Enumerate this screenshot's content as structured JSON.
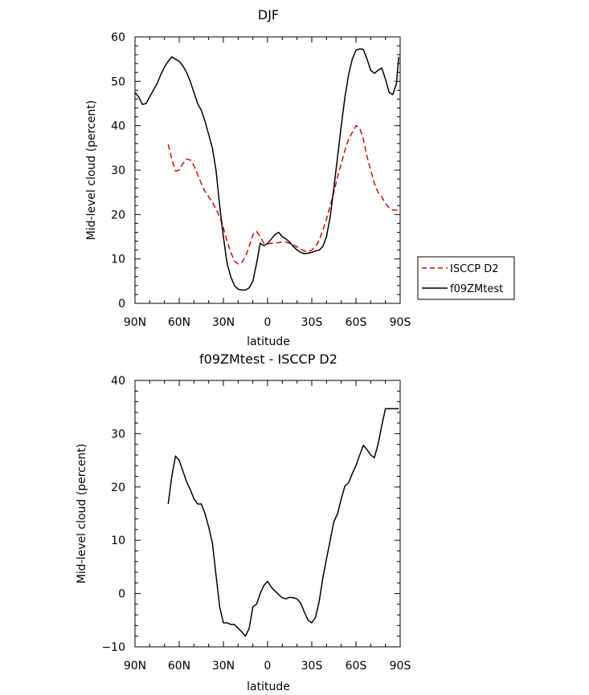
{
  "chart_data": [
    {
      "type": "line",
      "title": "DJF",
      "xlabel": "latitude",
      "ylabel": "Mid-level cloud (percent)",
      "xlim": [
        -90,
        90
      ],
      "ylim": [
        0,
        60
      ],
      "x_ticks": [
        {
          "value": -90,
          "label": "90N"
        },
        {
          "value": -60,
          "label": "60N"
        },
        {
          "value": -30,
          "label": "30N"
        },
        {
          "value": 0,
          "label": "0"
        },
        {
          "value": 30,
          "label": "30S"
        },
        {
          "value": 60,
          "label": "60S"
        },
        {
          "value": 90,
          "label": "90S"
        }
      ],
      "y_ticks": [
        0,
        10,
        20,
        30,
        40,
        50,
        60
      ],
      "legend_position": "right",
      "series": [
        {
          "name": "ISCCP D2",
          "color": "#dd0000",
          "dash": "dashed",
          "x": [
            -67.5,
            -65,
            -62.5,
            -60,
            -57.5,
            -55,
            -52.5,
            -50,
            -47.5,
            -45,
            -42.5,
            -40,
            -37.5,
            -35,
            -32.5,
            -30,
            -27.5,
            -25,
            -22.5,
            -20,
            -17.5,
            -15,
            -12.5,
            -10,
            -7.5,
            -5,
            -2.5,
            0,
            2.5,
            5,
            7.5,
            10,
            12.5,
            15,
            17.5,
            20,
            22.5,
            25,
            27.5,
            30,
            32.5,
            35,
            37.5,
            40,
            42.5,
            45,
            47.5,
            50,
            52.5,
            55,
            57.5,
            60,
            62.5,
            65,
            67.5,
            70,
            72.5,
            75,
            77.5,
            80,
            82.5,
            85,
            87.5,
            89
          ],
          "y": [
            35.8,
            32.5,
            29.8,
            30.0,
            31.5,
            32.5,
            32.3,
            31.0,
            29.0,
            27.0,
            25.2,
            24.0,
            22.8,
            21.2,
            19.5,
            17.0,
            14.0,
            11.5,
            9.5,
            8.9,
            9.2,
            10.5,
            12.8,
            15.5,
            16.2,
            15.0,
            13.5,
            13.4,
            13.5,
            13.6,
            13.7,
            13.8,
            13.8,
            13.5,
            13.2,
            12.7,
            12.2,
            11.8,
            11.7,
            12.0,
            12.8,
            14.2,
            16.5,
            19.0,
            22.0,
            25.0,
            28.5,
            31.5,
            34.5,
            37.0,
            38.5,
            40.0,
            39.5,
            37.0,
            33.0,
            30.0,
            27.0,
            25.0,
            24.0,
            22.5,
            21.5,
            21.0,
            21.0,
            21.0
          ]
        },
        {
          "name": "f09ZMtest",
          "color": "#000000",
          "dash": "solid",
          "x": [
            -90,
            -87.5,
            -85,
            -82.5,
            -80,
            -77.5,
            -75,
            -72.5,
            -70,
            -67.5,
            -65,
            -62.5,
            -60,
            -57.5,
            -55,
            -52.5,
            -50,
            -47.5,
            -45,
            -42.5,
            -40,
            -37.5,
            -35,
            -32.5,
            -30,
            -27.5,
            -25,
            -22.5,
            -20,
            -17.5,
            -15,
            -12.5,
            -10,
            -7.5,
            -5,
            -2.5,
            0,
            2.5,
            5,
            7.5,
            10,
            12.5,
            15,
            17.5,
            20,
            22.5,
            25,
            27.5,
            30,
            32.5,
            35,
            37.5,
            40,
            42.5,
            45,
            47.5,
            50,
            52.5,
            55,
            57.5,
            60,
            62.5,
            65,
            67.5,
            70,
            72.5,
            75,
            77.5,
            80,
            82.5,
            85,
            87.5,
            89
          ],
          "y": [
            47.5,
            46.5,
            44.8,
            45.0,
            46.5,
            48.0,
            49.5,
            51.5,
            53.2,
            54.5,
            55.5,
            55.0,
            54.5,
            53.5,
            52.0,
            50.0,
            47.5,
            45.0,
            43.5,
            41.0,
            38.0,
            35.0,
            30.0,
            22.0,
            15.0,
            9.0,
            6.0,
            4.0,
            3.2,
            3.0,
            3.0,
            3.5,
            5.0,
            9.0,
            13.5,
            13.0,
            13.5,
            14.5,
            15.5,
            16.0,
            15.0,
            14.5,
            13.8,
            12.8,
            12.0,
            11.5,
            11.2,
            11.3,
            11.5,
            11.8,
            12.0,
            12.8,
            15.0,
            19.5,
            26.0,
            33.0,
            40.0,
            46.5,
            51.5,
            55.0,
            57.0,
            57.3,
            57.2,
            55.0,
            52.5,
            51.8,
            52.5,
            53.0,
            50.5,
            47.5,
            47.0,
            49.5,
            55.5
          ]
        }
      ]
    },
    {
      "type": "line",
      "title": "f09ZMtest - ISCCP D2",
      "xlabel": "latitude",
      "ylabel": "Mid-level cloud (percent)",
      "xlim": [
        -90,
        90
      ],
      "ylim": [
        -10,
        40
      ],
      "x_ticks": [
        {
          "value": -90,
          "label": "90N"
        },
        {
          "value": -60,
          "label": "60N"
        },
        {
          "value": -30,
          "label": "30N"
        },
        {
          "value": 0,
          "label": "0"
        },
        {
          "value": 30,
          "label": "30S"
        },
        {
          "value": 60,
          "label": "60S"
        },
        {
          "value": 90,
          "label": "90S"
        }
      ],
      "y_ticks": [
        -10,
        0,
        10,
        20,
        30,
        40
      ],
      "series": [
        {
          "color": "#000000",
          "dash": "solid",
          "x": [
            -67.5,
            -65,
            -62.5,
            -60,
            -57.5,
            -55,
            -52.5,
            -50,
            -47.5,
            -45,
            -42.5,
            -40,
            -37.5,
            -35,
            -32.5,
            -30,
            -27.5,
            -25,
            -22.5,
            -20,
            -17.5,
            -15,
            -12.5,
            -10,
            -7.5,
            -5,
            -2.5,
            0,
            2.5,
            5,
            7.5,
            10,
            12.5,
            15,
            17.5,
            20,
            22.5,
            25,
            27.5,
            30,
            32.5,
            35,
            37.5,
            40,
            42.5,
            45,
            47.5,
            50,
            52.5,
            55,
            57.5,
            60,
            62.5,
            65,
            67.5,
            70,
            72.5,
            75,
            77.5,
            80,
            82.5,
            85,
            87.5,
            89
          ],
          "y": [
            16.8,
            22.0,
            25.8,
            25.0,
            23.0,
            21.0,
            19.5,
            17.8,
            16.8,
            16.8,
            15.0,
            12.5,
            9.5,
            3.5,
            -2.5,
            -5.5,
            -5.5,
            -5.8,
            -5.8,
            -6.5,
            -7.2,
            -8.0,
            -6.5,
            -2.5,
            -2.0,
            0.0,
            1.5,
            2.3,
            1.2,
            0.5,
            -0.2,
            -0.8,
            -1.0,
            -0.7,
            -0.8,
            -1.0,
            -1.8,
            -3.5,
            -5.0,
            -5.5,
            -4.5,
            -1.5,
            3.0,
            6.5,
            10.0,
            13.5,
            15.0,
            17.8,
            20.2,
            20.8,
            22.5,
            24.0,
            26.0,
            27.8,
            27.0,
            26.0,
            25.5,
            28.0,
            31.5,
            34.7,
            34.7,
            34.7,
            34.7,
            34.7
          ]
        }
      ]
    }
  ]
}
